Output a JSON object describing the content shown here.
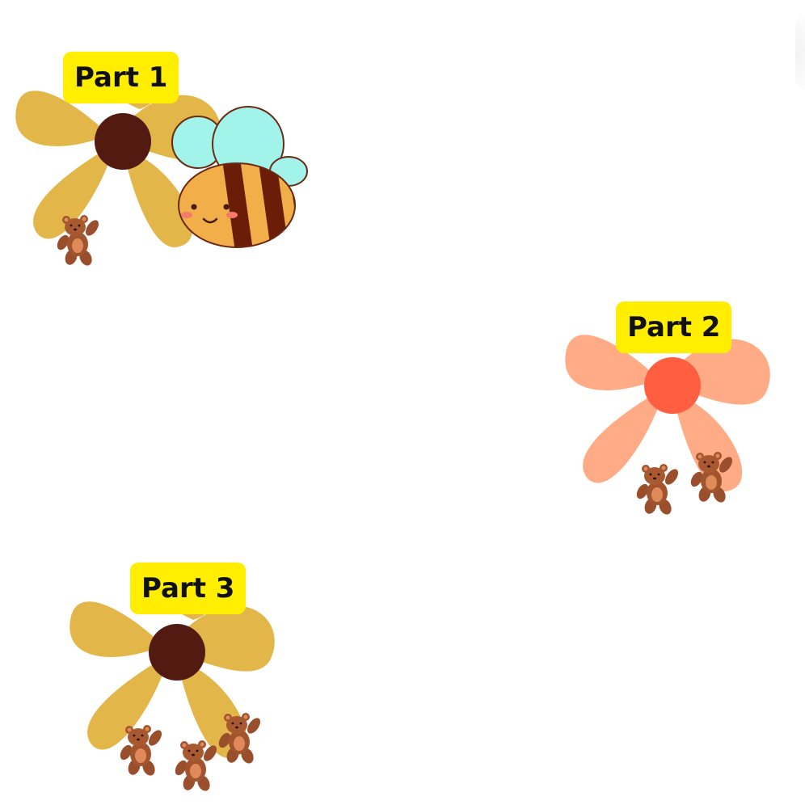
{
  "parts": [
    {
      "label": "Part 1",
      "petal_color": "#e3b64a",
      "center_color": "#531a12",
      "bears": 1
    },
    {
      "label": "Part 2",
      "petal_color": "#ffab85",
      "center_color": "#ff5f40",
      "bears": 2
    },
    {
      "label": "Part 3",
      "petal_color": "#e3b64a",
      "center_color": "#531a12",
      "bears": 3
    }
  ],
  "colors": {
    "label_bg": "#ffee00",
    "label_text": "#111111",
    "bear_body": "#a0522d",
    "bear_belly": "#e08a5a",
    "bee_body": "#f2ae48",
    "bee_stripe": "#6b1d08",
    "bee_wing": "#a2f3ea"
  },
  "icons": [
    "flower-icon",
    "teddy-bear-icon",
    "bee-icon"
  ]
}
